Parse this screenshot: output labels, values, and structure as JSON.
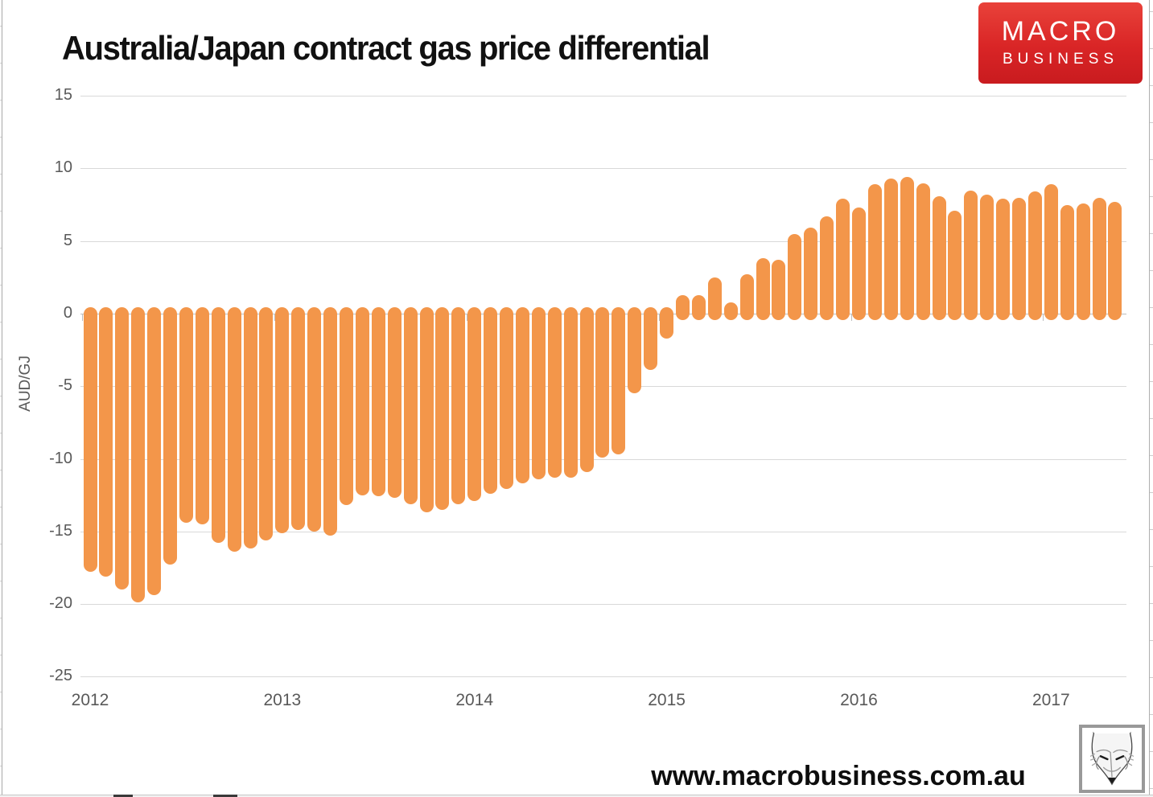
{
  "header": {
    "title": "Australia/Japan contract gas price differential"
  },
  "logo": {
    "line1": "MACRO",
    "line2": "BUSINESS",
    "bg_color": "#d92526",
    "text_color": "#ffffff"
  },
  "footer": {
    "url_text": "www.macrobusiness.com.au"
  },
  "watermark": {
    "icon": "fox-head-sketch"
  },
  "chart_data": {
    "type": "bar",
    "title": "Australia/Japan contract gas price differential",
    "xlabel": "",
    "ylabel": "AUD/GJ",
    "ylim": [
      -25,
      15
    ],
    "yticks": [
      15,
      10,
      5,
      0,
      -5,
      -10,
      -15,
      -20,
      -25
    ],
    "grid": true,
    "legend": "none",
    "bar_color": "#F3964A",
    "grid_color": "#d9d9d9",
    "axis_label_color": "#595959",
    "x_year_ticks": [
      "2012",
      "2013",
      "2014",
      "2015",
      "2016",
      "2017"
    ],
    "categories": [
      "Jan 2012",
      "Feb 2012",
      "Mar 2012",
      "Apr 2012",
      "May 2012",
      "Jun 2012",
      "Jul 2012",
      "Aug 2012",
      "Sep 2012",
      "Oct 2012",
      "Nov 2012",
      "Dec 2012",
      "Jan 2013",
      "Feb 2013",
      "Mar 2013",
      "Apr 2013",
      "May 2013",
      "Jun 2013",
      "Jul 2013",
      "Aug 2013",
      "Sep 2013",
      "Oct 2013",
      "Nov 2013",
      "Dec 2013",
      "Jan 2014",
      "Feb 2014",
      "Mar 2014",
      "Apr 2014",
      "May 2014",
      "Jun 2014",
      "Jul 2014",
      "Aug 2014",
      "Sep 2014",
      "Oct 2014",
      "Nov 2014",
      "Dec 2014",
      "Jan 2015",
      "Feb 2015",
      "Mar 2015",
      "Apr 2015",
      "May 2015",
      "Jun 2015",
      "Jul 2015",
      "Aug 2015",
      "Sep 2015",
      "Oct 2015",
      "Nov 2015",
      "Dec 2015",
      "Jan 2016",
      "Feb 2016",
      "Mar 2016",
      "Apr 2016",
      "May 2016",
      "Jun 2016",
      "Jul 2016",
      "Aug 2016",
      "Sep 2016",
      "Oct 2016",
      "Nov 2016",
      "Dec 2016",
      "Jan 2017",
      "Feb 2017",
      "Mar 2017",
      "Apr 2017",
      "May 2017"
    ],
    "values": [
      -17.8,
      -18.1,
      -19.0,
      -19.9,
      -19.4,
      -17.3,
      -14.4,
      -14.5,
      -15.8,
      -16.4,
      -16.2,
      -15.6,
      -15.1,
      -14.9,
      -15.0,
      -15.3,
      -13.2,
      -12.5,
      -12.6,
      -12.7,
      -13.1,
      -13.7,
      -13.5,
      -13.1,
      -12.9,
      -12.4,
      -12.1,
      -11.7,
      -11.4,
      -11.3,
      -11.3,
      -10.9,
      -9.9,
      -9.7,
      -5.5,
      -3.9,
      -1.7,
      1.3,
      1.3,
      2.5,
      0.8,
      2.7,
      3.8,
      3.7,
      5.5,
      5.9,
      6.7,
      7.9,
      7.3,
      8.9,
      9.3,
      9.4,
      9.0,
      8.1,
      7.1,
      8.5,
      8.2,
      7.9,
      8.0,
      8.4,
      8.9,
      7.5,
      7.6,
      8.0,
      7.7
    ]
  }
}
